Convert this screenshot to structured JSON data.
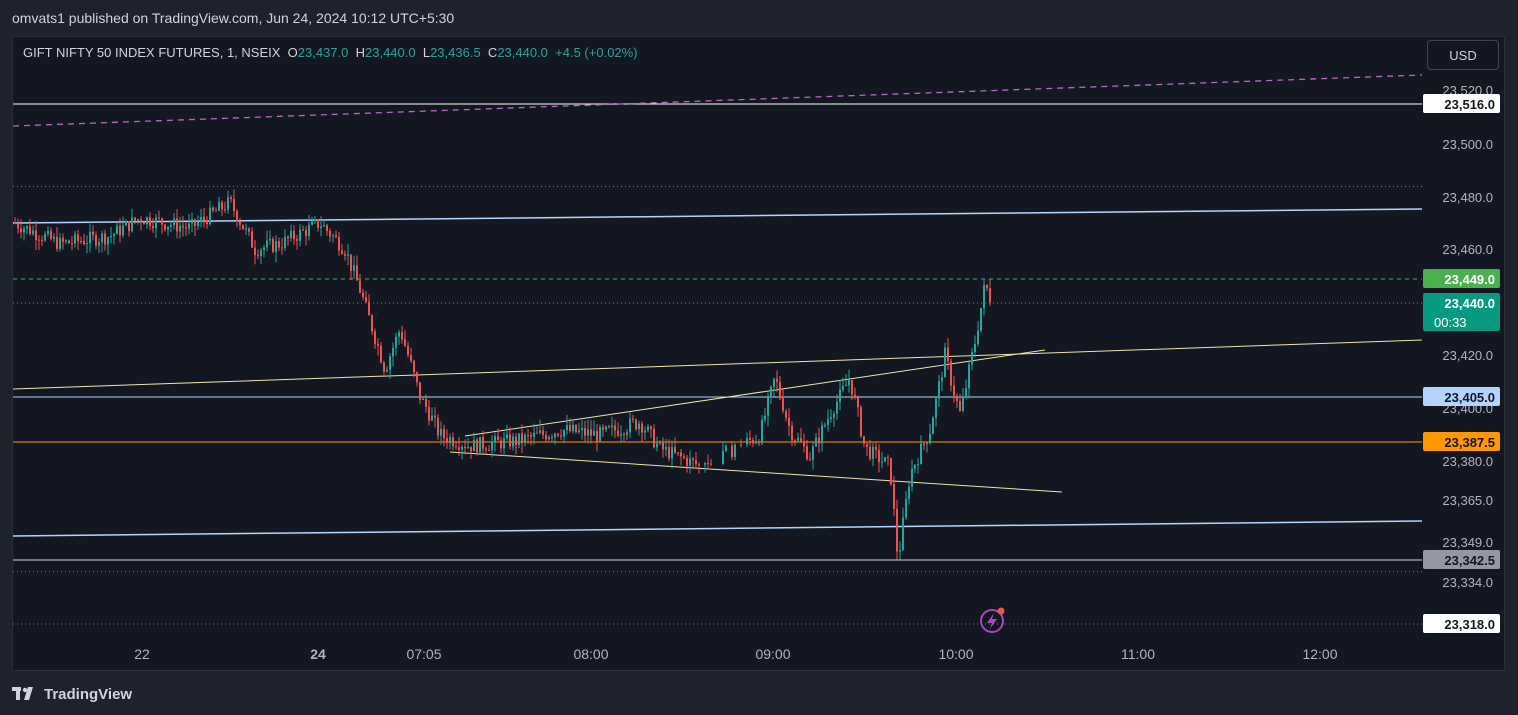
{
  "header": {
    "publish_line": "omvats1 published on TradingView.com, Jun 24, 2024 10:12 UTC+5:30"
  },
  "legend": {
    "symbol": "GIFT NIFTY 50 INDEX FUTURES, 1, NSEIX",
    "o_label": "O",
    "o_value": "23,437.0",
    "h_label": "H",
    "h_value": "23,440.0",
    "l_label": "L",
    "l_value": "23,436.5",
    "c_label": "C",
    "c_value": "23,440.0",
    "change": "+4.5 (+0.02%)"
  },
  "currency_button": "USD",
  "footer": {
    "brand": "TradingView"
  },
  "colors": {
    "up": "#26a69a",
    "down": "#ef5350",
    "background": "#131722",
    "grid_text": "#b2b5be",
    "orange": "#ff9800",
    "light_blue": "#b3d4fc",
    "green_tag": "#4caf50",
    "trend": "#f0e6b0",
    "projection": "#ba68c8"
  },
  "chart_data": {
    "type": "candlestick",
    "y_axis_ticks": [
      "23,520.0",
      "23,500.0",
      "23,480.0",
      "23,460.0",
      "23,420.0",
      "23,400.0",
      "23,380.0",
      "23,365.0",
      "23,349.0",
      "23,334.0"
    ],
    "x_axis_ticks": [
      "22",
      "24",
      "07:05",
      "08:00",
      "09:00",
      "10:00",
      "11:00",
      "12:00"
    ],
    "price_tags": [
      {
        "label": "23,516.0",
        "style": "white"
      },
      {
        "label": "23,449.0",
        "style": "green"
      },
      {
        "label": "23,440.0",
        "sub": "00:33",
        "style": "teal"
      },
      {
        "label": "23,405.0",
        "style": "lightblue"
      },
      {
        "label": "23,387.5",
        "style": "orange"
      },
      {
        "label": "23,342.5",
        "style": "gray"
      },
      {
        "label": "23,318.0",
        "style": "white"
      }
    ],
    "horizontal_levels": [
      23516.0,
      23449.0,
      23440.0,
      23405.0,
      23387.5,
      23342.5,
      23318.0,
      23484.0
    ],
    "ohlc_segments": [
      {
        "session": "22",
        "range": [
          23455,
          23478
        ]
      },
      {
        "session": "24 pre-07:05",
        "range": [
          23445,
          23485
        ]
      },
      {
        "session": "07:05-08:00",
        "range": [
          23380,
          23440
        ]
      },
      {
        "session": "08:00-09:00",
        "range": [
          23370,
          23400
        ]
      },
      {
        "session": "09:00-10:00",
        "range": [
          23338,
          23418
        ]
      },
      {
        "session": "10:00-10:12",
        "range": [
          23395,
          23450
        ]
      }
    ],
    "last": {
      "open": 23437.0,
      "high": 23440.0,
      "low": 23436.5,
      "close": 23440.0
    }
  }
}
